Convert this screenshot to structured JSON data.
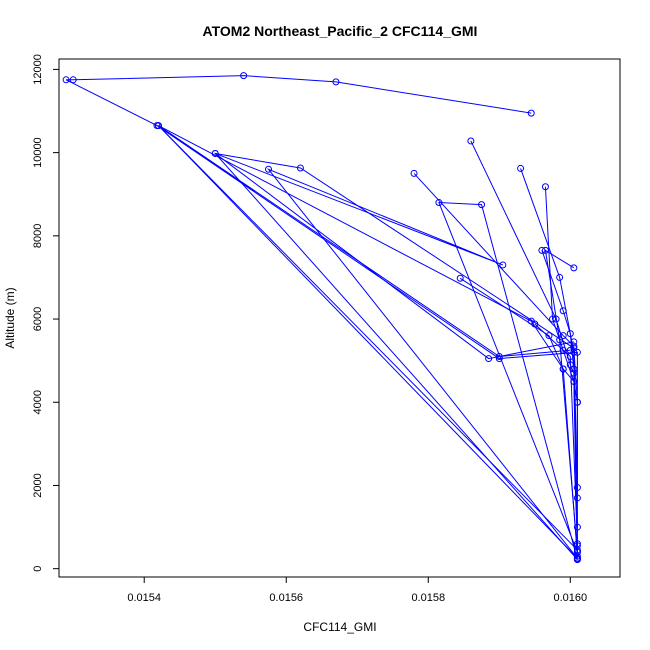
{
  "chart_data": {
    "type": "line",
    "title": "ATOM2 Northeast_Pacific_2 CFC114_GMI",
    "xlabel": "CFC114_GMI",
    "ylabel": "Altitude (m)",
    "xlim": [
      0.01528,
      0.01607
    ],
    "ylim": [
      -200,
      12250
    ],
    "x_ticks": [
      0.0154,
      0.0156,
      0.0158,
      0.016
    ],
    "x_tick_labels": [
      "0.0154",
      "0.0156",
      "0.0158",
      "0.0160"
    ],
    "y_ticks": [
      0,
      2000,
      4000,
      6000,
      8000,
      10000,
      12000
    ],
    "y_tick_labels": [
      "0",
      "2000",
      "4000",
      "6000",
      "8000",
      "10000",
      "12000"
    ],
    "grid": false,
    "line_color": "#0000ff",
    "series": [
      {
        "x": [
          0.015945,
          0.01567,
          0.01554,
          0.0153,
          0.01529,
          0.015418,
          0.0159,
          0.01601,
          0.01601,
          0.01542,
          0.0159,
          0.016
        ],
        "y": [
          10950,
          11700,
          11850,
          11750,
          11750,
          10650,
          5050,
          5200,
          450,
          10650,
          5100,
          5250
        ]
      },
      {
        "x": [
          0.01601,
          0.01542,
          0.015945,
          0.01599,
          0.016005,
          0.01601,
          0.01601
        ],
        "y": [
          250,
          10650,
          5950,
          4800,
          4500,
          4000,
          1700
        ]
      },
      {
        "x": [
          0.01601,
          0.0155,
          0.01562,
          0.016005,
          0.01601
        ],
        "y": [
          220,
          9980,
          9630,
          5300,
          4000
        ]
      },
      {
        "x": [
          0.01601,
          0.015575,
          0.015905,
          0.0155,
          0.015885,
          0.016005
        ],
        "y": [
          250,
          9600,
          7300,
          9980,
          5050,
          5450
        ]
      },
      {
        "x": [
          0.01601,
          0.015815,
          0.015875,
          0.01601
        ],
        "y": [
          400,
          8800,
          8750,
          220
        ]
      },
      {
        "x": [
          0.01578,
          0.01599,
          0.016005,
          0.01601
        ],
        "y": [
          9500,
          5600,
          5350,
          1950
        ]
      },
      {
        "x": [
          0.01586,
          0.01598,
          0.016,
          0.016005,
          0.01601
        ],
        "y": [
          10280,
          6000,
          4900,
          4700,
          550
        ]
      },
      {
        "x": [
          0.01593,
          0.015985,
          0.016005,
          0.01601
        ],
        "y": [
          9620,
          7000,
          5200,
          1000
        ]
      },
      {
        "x": [
          0.015965,
          0.015975,
          0.016005,
          0.01601
        ],
        "y": [
          9180,
          6000,
          4500,
          250
        ]
      },
      {
        "x": [
          0.01596,
          0.01599,
          0.016,
          0.016005
        ],
        "y": [
          7650,
          6200,
          5650,
          4800
        ]
      },
      {
        "x": [
          0.016005,
          0.015965,
          0.015985,
          0.01601
        ],
        "y": [
          7230,
          7650,
          5500,
          400
        ]
      },
      {
        "x": [
          0.015845,
          0.01597,
          0.01599,
          0.01601
        ],
        "y": [
          6980,
          5600,
          4800,
          300
        ]
      },
      {
        "x": [
          0.01595,
          0.01599,
          0.016,
          0.01601
        ],
        "y": [
          5880,
          5250,
          5100,
          600
        ]
      }
    ]
  }
}
